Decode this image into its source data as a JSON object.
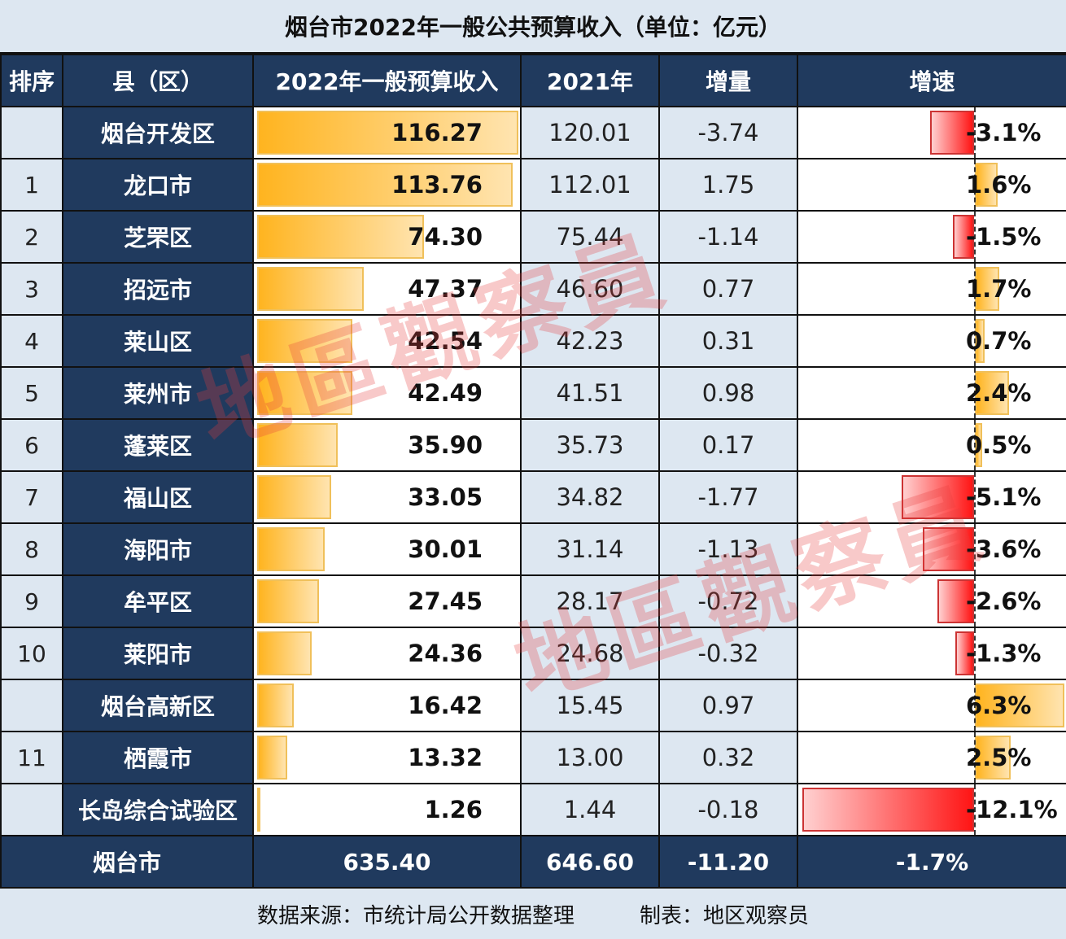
{
  "title": "烟台市2022年一般公共预算收入（单位：亿元）",
  "headers": {
    "rank": "排序",
    "name": "县（区）",
    "current": "2022年一般预算收入",
    "previous": "2021年",
    "delta": "增量",
    "rate": "增速"
  },
  "rows": [
    {
      "rank": "",
      "name": "烟台开发区",
      "current": "116.27",
      "previous": "120.01",
      "delta": "-3.74",
      "rate": "-3.1%"
    },
    {
      "rank": "1",
      "name": "龙口市",
      "current": "113.76",
      "previous": "112.01",
      "delta": "1.75",
      "rate": "1.6%"
    },
    {
      "rank": "2",
      "name": "芝罘区",
      "current": "74.30",
      "previous": "75.44",
      "delta": "-1.14",
      "rate": "-1.5%"
    },
    {
      "rank": "3",
      "name": "招远市",
      "current": "47.37",
      "previous": "46.60",
      "delta": "0.77",
      "rate": "1.7%"
    },
    {
      "rank": "4",
      "name": "莱山区",
      "current": "42.54",
      "previous": "42.23",
      "delta": "0.31",
      "rate": "0.7%"
    },
    {
      "rank": "5",
      "name": "莱州市",
      "current": "42.49",
      "previous": "41.51",
      "delta": "0.98",
      "rate": "2.4%"
    },
    {
      "rank": "6",
      "name": "蓬莱区",
      "current": "35.90",
      "previous": "35.73",
      "delta": "0.17",
      "rate": "0.5%"
    },
    {
      "rank": "7",
      "name": "福山区",
      "current": "33.05",
      "previous": "34.82",
      "delta": "-1.77",
      "rate": "-5.1%"
    },
    {
      "rank": "8",
      "name": "海阳市",
      "current": "30.01",
      "previous": "31.14",
      "delta": "-1.13",
      "rate": "-3.6%"
    },
    {
      "rank": "9",
      "name": "牟平区",
      "current": "27.45",
      "previous": "28.17",
      "delta": "-0.72",
      "rate": "-2.6%"
    },
    {
      "rank": "10",
      "name": "莱阳市",
      "current": "24.36",
      "previous": "24.68",
      "delta": "-0.32",
      "rate": "-1.3%"
    },
    {
      "rank": "",
      "name": "烟台高新区",
      "current": "16.42",
      "previous": "15.45",
      "delta": "0.97",
      "rate": "6.3%"
    },
    {
      "rank": "11",
      "name": "栖霞市",
      "current": "13.32",
      "previous": "13.00",
      "delta": "0.32",
      "rate": "2.5%"
    },
    {
      "rank": "",
      "name": "长岛综合试验区",
      "current": "1.26",
      "previous": "1.44",
      "delta": "-0.18",
      "rate": "-12.1%"
    }
  ],
  "total": {
    "name": "烟台市",
    "current": "635.40",
    "previous": "646.60",
    "delta": "-11.20",
    "rate": "-1.7%"
  },
  "footer": {
    "source": "数据来源：市统计局公开数据整理",
    "author": "制表：地区观察员"
  },
  "watermark": "地區觀察員",
  "colors": {
    "header_bg": "#203a5e",
    "light_bg": "#dde7f1",
    "bar_positive": "#ffb41f",
    "bar_negative": "#ff1515"
  },
  "chart_data": {
    "type": "table",
    "title": "烟台市2022年一般公共预算收入（单位：亿元）",
    "columns": [
      "排序",
      "县（区）",
      "2022年一般预算收入",
      "2021年",
      "增量",
      "增速"
    ],
    "categories": [
      "烟台开发区",
      "龙口市",
      "芝罘区",
      "招远市",
      "莱山区",
      "莱州市",
      "蓬莱区",
      "福山区",
      "海阳市",
      "牟平区",
      "莱阳市",
      "烟台高新区",
      "栖霞市",
      "长岛综合试验区"
    ],
    "series": [
      {
        "name": "2022年一般预算收入",
        "values": [
          116.27,
          113.76,
          74.3,
          47.37,
          42.54,
          42.49,
          35.9,
          33.05,
          30.01,
          27.45,
          24.36,
          16.42,
          13.32,
          1.26
        ]
      },
      {
        "name": "2021年",
        "values": [
          120.01,
          112.01,
          75.44,
          46.6,
          42.23,
          41.51,
          35.73,
          34.82,
          31.14,
          28.17,
          24.68,
          15.45,
          13.0,
          1.44
        ]
      },
      {
        "name": "增量",
        "values": [
          -3.74,
          1.75,
          -1.14,
          0.77,
          0.31,
          0.98,
          0.17,
          -1.77,
          -1.13,
          -0.72,
          -0.32,
          0.97,
          0.32,
          -0.18
        ]
      },
      {
        "name": "增速(%)",
        "values": [
          -3.1,
          1.6,
          -1.5,
          1.7,
          0.7,
          2.4,
          0.5,
          -5.1,
          -3.6,
          -2.6,
          -1.3,
          6.3,
          2.5,
          -12.1
        ]
      }
    ],
    "total": {
      "name": "烟台市",
      "2022": 635.4,
      "2021": 646.6,
      "delta": -11.2,
      "rate": -1.7
    },
    "note": "数据来源：市统计局公开数据整理；制表：地区观察员"
  }
}
